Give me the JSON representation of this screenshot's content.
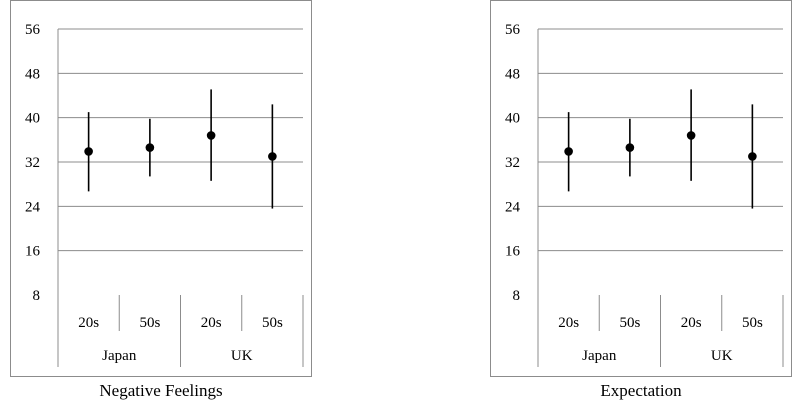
{
  "chart_data": [
    {
      "type": "scatter",
      "title": "Negative Feelings",
      "xlabel": "",
      "ylabel": "",
      "ylim": [
        8,
        56
      ],
      "yticks": [
        "56",
        "48",
        "40",
        "32",
        "24",
        "16",
        "8"
      ],
      "groups": [
        {
          "name": "Japan",
          "categories": [
            "20s",
            "50s"
          ]
        },
        {
          "name": "UK",
          "categories": [
            "20s",
            "50s"
          ]
        }
      ],
      "categories": [
        "20s",
        "50s",
        "20s",
        "50s"
      ],
      "series": [
        {
          "mean": [
            33.9,
            34.6,
            36.8,
            33.0
          ],
          "low": [
            26.7,
            29.4,
            28.6,
            23.6
          ],
          "high": [
            41.0,
            39.8,
            45.1,
            42.4
          ]
        }
      ],
      "grid": true,
      "legend": "none"
    },
    {
      "type": "scatter",
      "title": "Expectation",
      "xlabel": "",
      "ylabel": "",
      "ylim": [
        8,
        56
      ],
      "yticks": [
        "56",
        "48",
        "40",
        "32",
        "24",
        "16",
        "8"
      ],
      "groups": [
        {
          "name": "Japan",
          "categories": [
            "20s",
            "50s"
          ]
        },
        {
          "name": "UK",
          "categories": [
            "20s",
            "50s"
          ]
        }
      ],
      "categories": [
        "20s",
        "50s",
        "20s",
        "50s"
      ],
      "series": [
        {
          "mean": [
            33.9,
            34.6,
            36.8,
            33.0
          ],
          "low": [
            26.7,
            29.4,
            28.6,
            23.6
          ],
          "high": [
            41.0,
            39.8,
            45.1,
            42.4
          ]
        }
      ],
      "grid": true,
      "legend": "none"
    }
  ]
}
